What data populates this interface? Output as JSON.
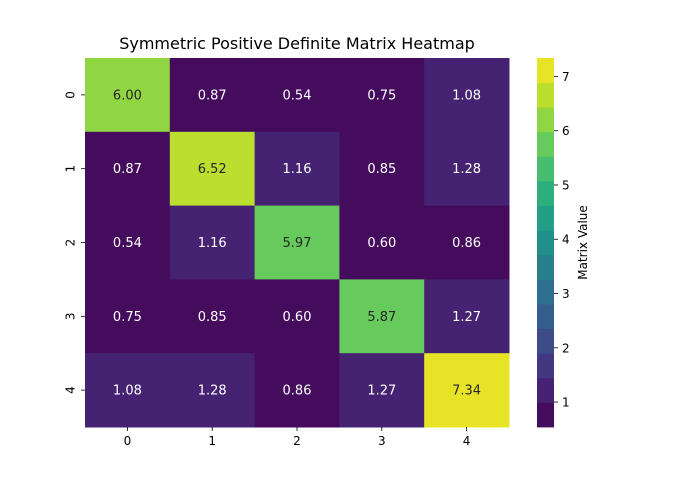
{
  "chart_data": {
    "type": "heatmap",
    "title": "Symmetric Positive Definite Matrix Heatmap",
    "row_labels": [
      "0",
      "1",
      "2",
      "3",
      "4"
    ],
    "col_labels": [
      "0",
      "1",
      "2",
      "3",
      "4"
    ],
    "values": [
      [
        6.0,
        0.87,
        0.54,
        0.75,
        1.08
      ],
      [
        0.87,
        6.52,
        1.16,
        0.85,
        1.28
      ],
      [
        0.54,
        1.16,
        5.97,
        0.6,
        0.86
      ],
      [
        0.75,
        0.85,
        0.6,
        5.87,
        1.27
      ],
      [
        1.08,
        1.28,
        0.86,
        1.27,
        7.34
      ]
    ],
    "annotation_format": "0.00",
    "colormap": "viridis",
    "color_levels": 15,
    "vmin": 0.54,
    "vmax": 7.34,
    "colorbar": {
      "label": "Matrix Value",
      "ticks": [
        1,
        2,
        3,
        4,
        5,
        6,
        7
      ]
    }
  }
}
